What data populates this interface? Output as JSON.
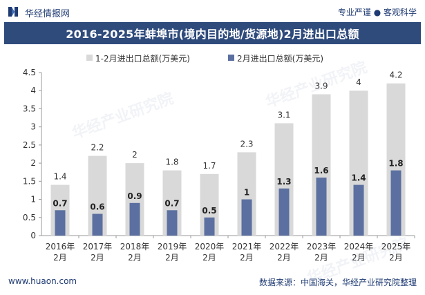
{
  "header": {
    "brand": "华经情报网",
    "tagline": "专业严谨 ● 客观科学"
  },
  "chart_data": {
    "type": "bar",
    "title": "2016-2025年蚌埠市(境内目的地/货源地)2月进出口总额",
    "categories": [
      "2016年\n2月",
      "2017年\n2月",
      "2018年\n2月",
      "2019年\n2月",
      "2020年\n2月",
      "2021年\n2月",
      "2022年\n2月",
      "2023年\n2月",
      "2024年\n2月",
      "2025年\n2月"
    ],
    "series": [
      {
        "name": "1-2月进出口总额(万美元)",
        "color": "#d9d9d9",
        "values": [
          1.4,
          2.2,
          2,
          1.8,
          1.7,
          2.3,
          3.1,
          3.9,
          4,
          4.2
        ]
      },
      {
        "name": "2月进出口总额(万美元)",
        "color": "#5b6fa0",
        "values": [
          0.7,
          0.6,
          0.9,
          0.7,
          0.5,
          1,
          1.3,
          1.6,
          1.4,
          1.8
        ]
      }
    ],
    "ylim": [
      0,
      4.5
    ],
    "yticks": [
      0,
      0.5,
      1,
      1.5,
      2,
      2.5,
      3,
      3.5,
      4,
      4.5
    ],
    "legend_position": "top-center",
    "grid": false
  },
  "footer": {
    "website": "www.huaon.com",
    "source": "数据来源：中国海关，华经产业研究院整理"
  },
  "watermark_text": "华经产业研究院"
}
